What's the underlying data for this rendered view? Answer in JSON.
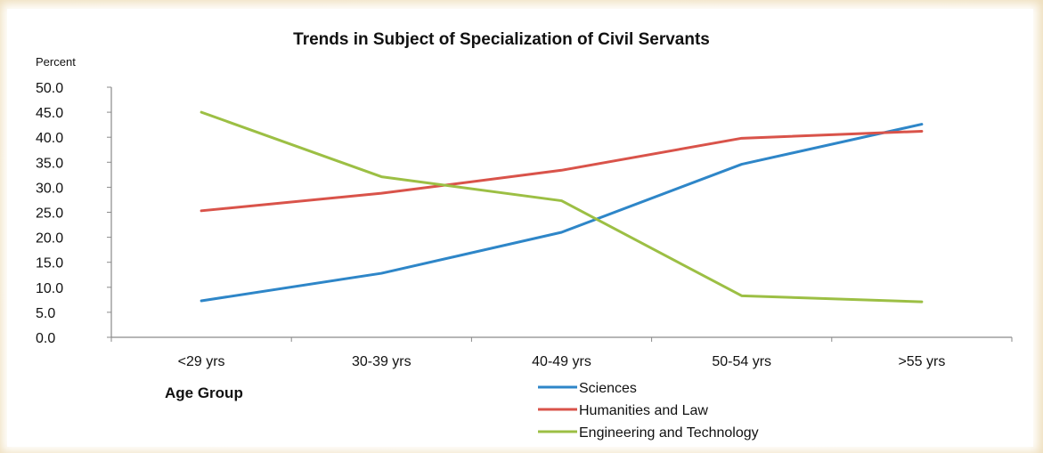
{
  "chart_data": {
    "type": "line",
    "title": "Trends in Subject of Specialization of Civil Servants",
    "ylabel": "Percent",
    "xlabel": "Age Group",
    "categories": [
      "<29 yrs",
      "30-39 yrs",
      "40-49 yrs",
      "50-54 yrs",
      ">55 yrs"
    ],
    "ylim": [
      0,
      50
    ],
    "yticks": [
      "50.0",
      "45.0",
      "40.0",
      "35.0",
      "30.0",
      "25.0",
      "20.0",
      "15.0",
      "10.0",
      "5.0",
      "0.0"
    ],
    "grid": false,
    "legend_position": "bottom",
    "series": [
      {
        "name": "Sciences",
        "color": "#2e86c8",
        "values": [
          7.3,
          12.8,
          21.0,
          34.6,
          42.6
        ]
      },
      {
        "name": "Humanities and Law",
        "color": "#d9534a",
        "values": [
          25.3,
          28.8,
          33.4,
          39.8,
          41.2
        ]
      },
      {
        "name": "Engineering and Technology",
        "color": "#9cbf44",
        "values": [
          45.0,
          32.1,
          27.3,
          8.3,
          7.1
        ]
      }
    ]
  }
}
